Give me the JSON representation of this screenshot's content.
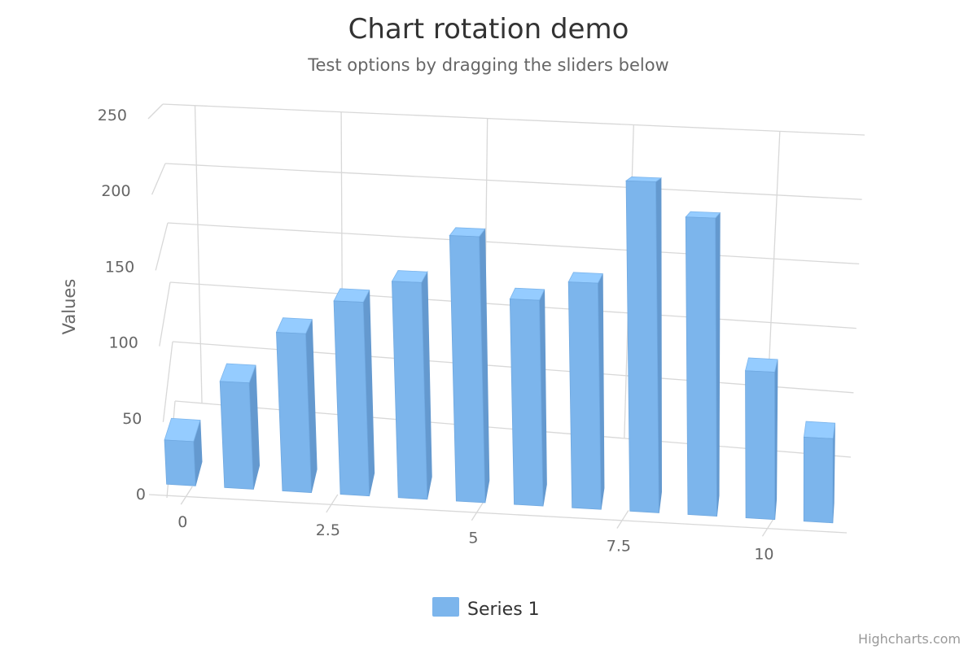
{
  "chart_data": {
    "type": "bar",
    "title": "Chart rotation demo",
    "subtitle": "Test options by dragging the sliders below",
    "ylabel": "Values",
    "xlabel": "",
    "ylim": [
      0,
      250
    ],
    "xlim": [
      0,
      11
    ],
    "y_ticks": [
      "0",
      "50",
      "100",
      "150",
      "200",
      "250"
    ],
    "x_ticks": [
      "0",
      "2.5",
      "5",
      "7.5",
      "10"
    ],
    "x": [
      0,
      1,
      2,
      3,
      4,
      5,
      6,
      7,
      8,
      9,
      10,
      11
    ],
    "series": [
      {
        "name": "Series 1",
        "color": "#7cb5ec",
        "values": [
          29.9,
          71.5,
          106.4,
          129.2,
          144.0,
          176.0,
          135.6,
          148.5,
          216.4,
          194.1,
          95.6,
          54.4
        ]
      }
    ],
    "grid": true,
    "legend_position": "bottom-center",
    "view": "3d",
    "credits": "Highcharts.com"
  }
}
